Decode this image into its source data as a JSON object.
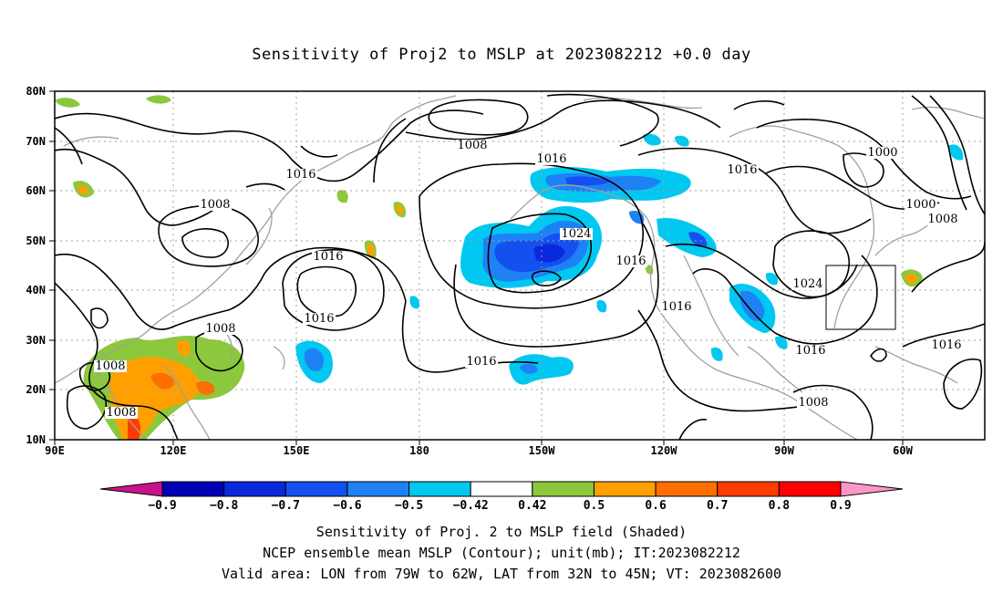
{
  "title": "Sensitivity of Proj2 to MSLP at 2023082212 +0.0 day",
  "lat_labels": [
    "80N",
    "70N",
    "60N",
    "50N",
    "40N",
    "30N",
    "20N",
    "10N"
  ],
  "lon_labels": [
    "90E",
    "120E",
    "150E",
    "180",
    "150W",
    "120W",
    "90W",
    "60W"
  ],
  "contour_labels": [
    {
      "text": "1008"
    },
    {
      "text": "1016"
    },
    {
      "text": "1008"
    },
    {
      "text": "1016"
    },
    {
      "text": "1016"
    },
    {
      "text": "1016"
    },
    {
      "text": "1008"
    },
    {
      "text": "1008"
    },
    {
      "text": "1008"
    },
    {
      "text": "1016"
    },
    {
      "text": "1024"
    },
    {
      "text": "1016"
    },
    {
      "text": "1016"
    },
    {
      "text": "1016"
    },
    {
      "text": "1024"
    },
    {
      "text": "1016"
    },
    {
      "text": "1008"
    },
    {
      "text": "1000"
    },
    {
      "text": "1000"
    },
    {
      "text": "1008"
    },
    {
      "text": "1016"
    }
  ],
  "colorbar": {
    "labels": [
      "-0.9",
      "-0.8",
      "-0.7",
      "-0.6",
      "-0.5",
      "-0.42",
      "0.42",
      "0.5",
      "0.6",
      "0.7",
      "0.8",
      "0.9"
    ],
    "colors": [
      "#0000b4",
      "#0a28dc",
      "#1450f0",
      "#1e82f5",
      "#00c8f0",
      "#ffffff",
      "#8cc83c",
      "#ffa000",
      "#ff6e00",
      "#ff3c00",
      "#ff0000"
    ],
    "low_end_color": "#c8148c",
    "high_end_color": "#ff96c8"
  },
  "captions": [
    "Sensitivity of Proj. 2 to MSLP field (Shaded)",
    "NCEP ensemble mean MSLP (Contour); unit(mb); IT:2023082212",
    "Valid area: LON from 79W to 62W, LAT from 32N to 45N; VT: 2023082600"
  ]
}
